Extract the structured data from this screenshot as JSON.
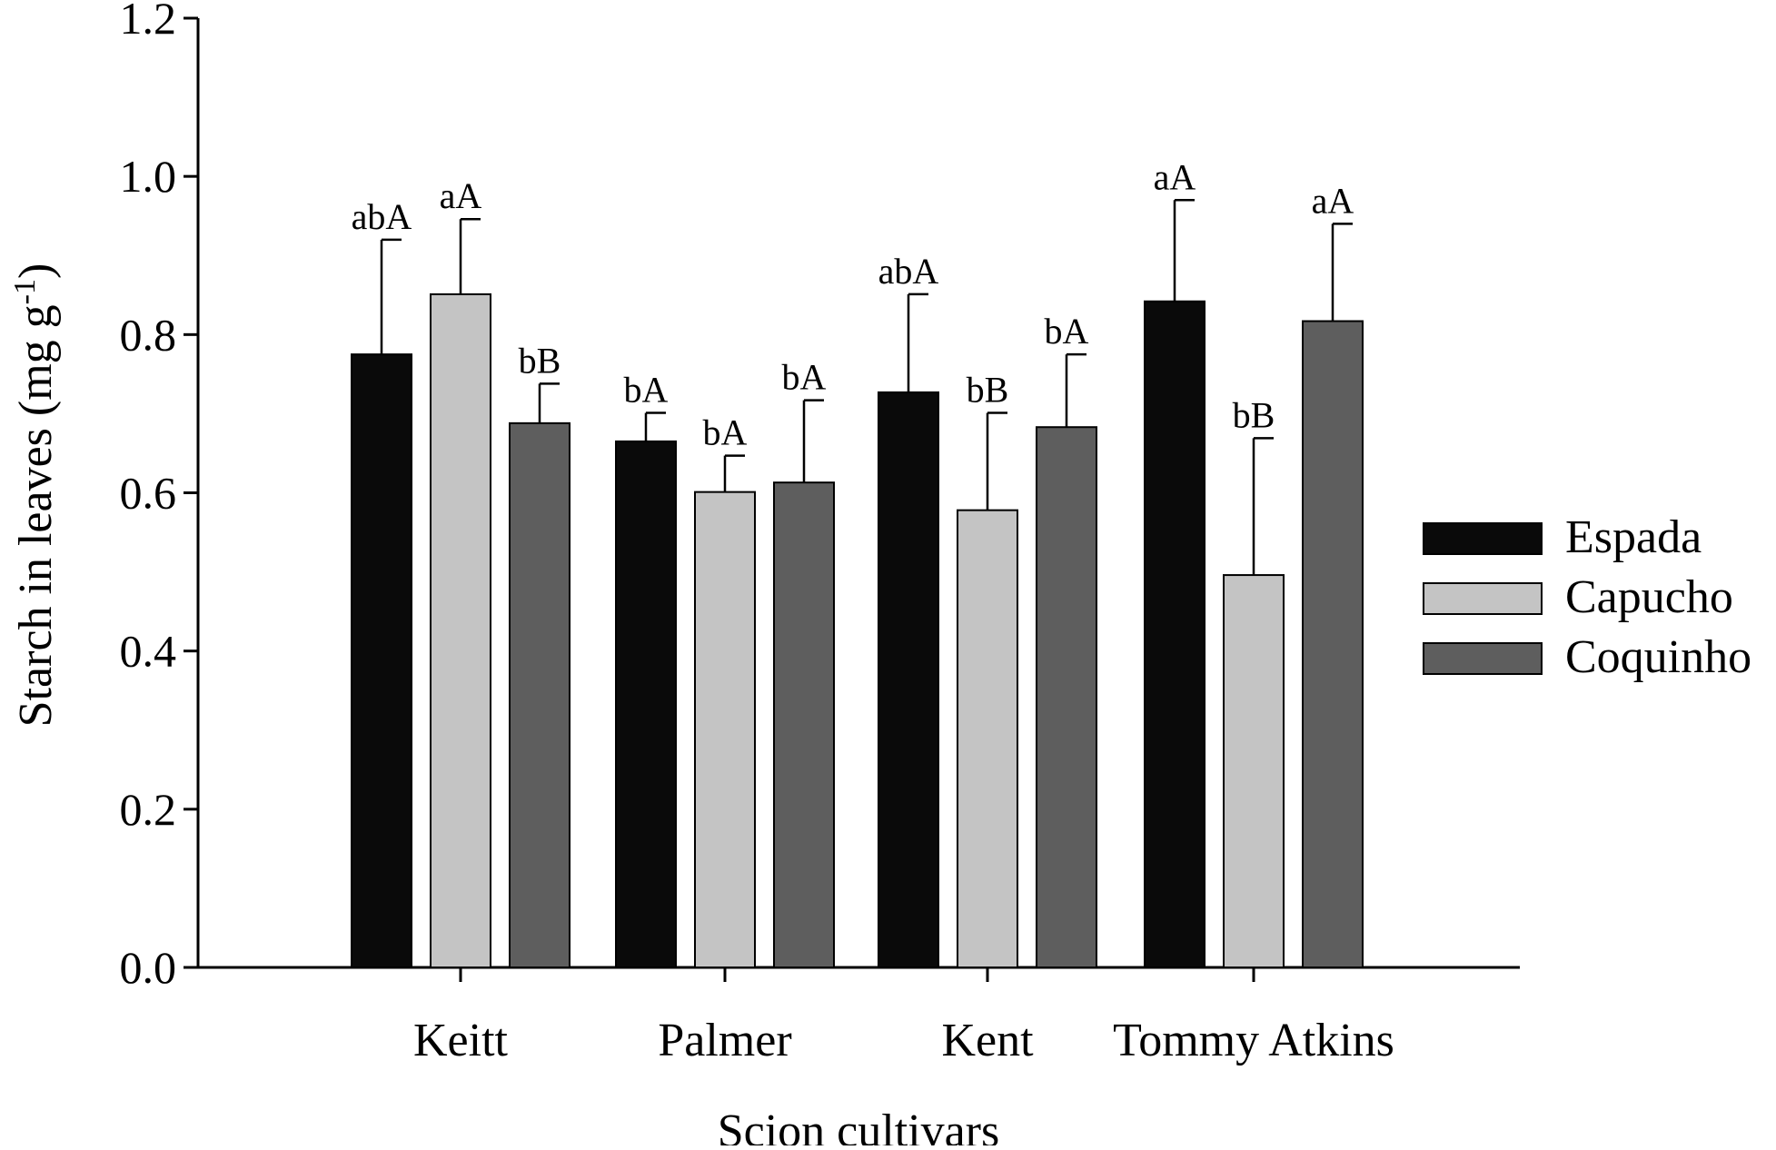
{
  "chart_data": {
    "type": "bar",
    "xlabel": "Scion cultivars",
    "ylabel": "Starch in leaves (mg g",
    "ylabel_superscript": "-1",
    "ylabel_suffix": ")",
    "ylim": [
      0,
      1.2
    ],
    "yticks": [
      "0.0",
      "0.2",
      "0.4",
      "0.6",
      "0.8",
      "1.0",
      "1.2"
    ],
    "categories": [
      "Keitt",
      "Palmer",
      "Kent",
      "Tommy Atkins"
    ],
    "legend_position": "right",
    "grid": false,
    "series": [
      {
        "name": "Espada",
        "color": "#0a0a0a",
        "values": [
          0.775,
          0.665,
          0.727,
          0.842
        ],
        "errors": [
          0.145,
          0.036,
          0.124,
          0.128
        ],
        "labels": [
          "abA",
          "bA",
          "abA",
          "aA"
        ]
      },
      {
        "name": "Capucho",
        "color": "#c4c4c4",
        "values": [
          0.851,
          0.601,
          0.578,
          0.496
        ],
        "errors": [
          0.095,
          0.046,
          0.123,
          0.173
        ],
        "labels": [
          "aA",
          "bA",
          "bB",
          "bB"
        ]
      },
      {
        "name": "Coquinho",
        "color": "#5e5e5e",
        "values": [
          0.688,
          0.613,
          0.683,
          0.817
        ],
        "errors": [
          0.05,
          0.104,
          0.092,
          0.123
        ],
        "labels": [
          "bB",
          "bA",
          "bA",
          "aA"
        ]
      }
    ]
  }
}
